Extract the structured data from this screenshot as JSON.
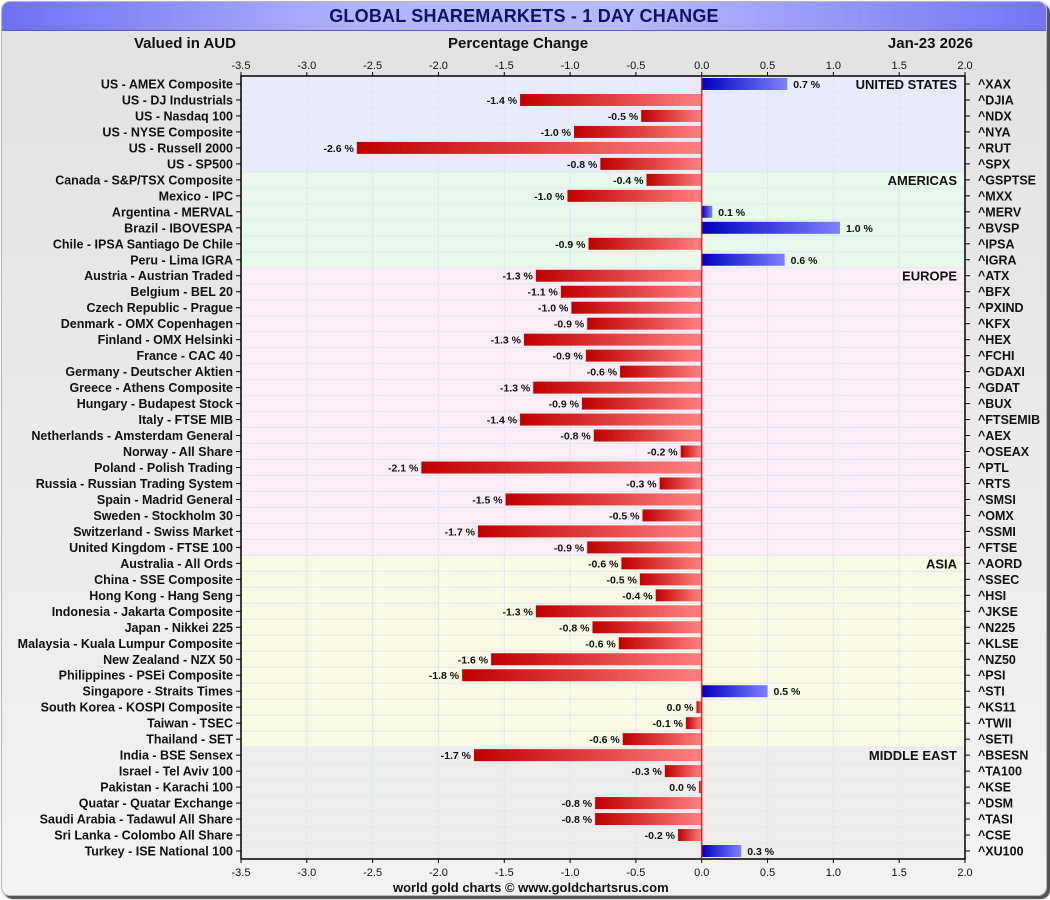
{
  "header": {
    "title": "GLOBAL SHAREMARKETS - 1 DAY CHANGE",
    "currency_note": "Valued in AUD",
    "axis_title": "Percentage Change",
    "date": "Jan-23  2026"
  },
  "footer": {
    "credit": "world gold charts © www.goldchartsrus.com"
  },
  "colors": {
    "negative_dark": "#c00000",
    "negative_light": "#ff8080",
    "positive_dark": "#0000c0",
    "positive_light": "#8080ff",
    "zero_line": "#ff0000"
  },
  "chart_data": {
    "type": "bar",
    "orientation": "horizontal",
    "title": "GLOBAL SHAREMARKETS - 1 DAY CHANGE",
    "xlabel": "Percentage Change",
    "xlim": [
      -3.5,
      2.0
    ],
    "x_ticks": [
      "-3.5",
      "-3.0",
      "-2.5",
      "-2.0",
      "-1.5",
      "-1.0",
      "-0.5",
      "0.0",
      "0.5",
      "1.0",
      "1.5",
      "2.0"
    ],
    "grid": true,
    "value_suffix": " %",
    "regions": [
      {
        "name": "UNITED STATES",
        "color": "#e8ecfa",
        "rows": [
          {
            "label": "US - AMEX Composite",
            "ticker": "^XAX",
            "value": 0.65,
            "display": "0.7"
          },
          {
            "label": "US - DJ Industrials",
            "ticker": "^DJIA",
            "value": -1.38,
            "display": "-1.4"
          },
          {
            "label": "US - Nasdaq 100",
            "ticker": "^NDX",
            "value": -0.46,
            "display": "-0.5"
          },
          {
            "label": "US - NYSE Composite",
            "ticker": "^NYA",
            "value": -0.97,
            "display": "-1.0"
          },
          {
            "label": "US - Russell 2000",
            "ticker": "^RUT",
            "value": -2.62,
            "display": "-2.6"
          },
          {
            "label": "US - SP500",
            "ticker": "^SPX",
            "value": -0.77,
            "display": "-0.8"
          }
        ]
      },
      {
        "name": "AMERICAS",
        "color": "#e8f8ea",
        "rows": [
          {
            "label": "Canada - S&P/TSX Composite",
            "ticker": "^GSPTSE",
            "value": -0.42,
            "display": "-0.4"
          },
          {
            "label": "Mexico - IPC",
            "ticker": "^MXX",
            "value": -1.02,
            "display": "-1.0"
          },
          {
            "label": "Argentina - MERVAL",
            "ticker": "^MERV",
            "value": 0.08,
            "display": "0.1"
          },
          {
            "label": "Brazil - IBOVESPA",
            "ticker": "^BVSP",
            "value": 1.05,
            "display": "1.0"
          },
          {
            "label": "Chile - IPSA Santiago De Chile",
            "ticker": "^IPSA",
            "value": -0.86,
            "display": "-0.9"
          },
          {
            "label": "Peru - Lima IGRA",
            "ticker": "^IGRA",
            "value": 0.63,
            "display": "0.6"
          }
        ]
      },
      {
        "name": "EUROPE",
        "color": "#fbeef7",
        "rows": [
          {
            "label": "Austria - Austrian Traded",
            "ticker": "^ATX",
            "value": -1.26,
            "display": "-1.3"
          },
          {
            "label": "Belgium - BEL 20",
            "ticker": "^BFX",
            "value": -1.07,
            "display": "-1.1"
          },
          {
            "label": "Czech Republic - Prague",
            "ticker": "^PXIND",
            "value": -0.99,
            "display": "-1.0"
          },
          {
            "label": "Denmark - OMX Copenhagen",
            "ticker": "^KFX",
            "value": -0.87,
            "display": "-0.9"
          },
          {
            "label": "Finland - OMX Helsinki",
            "ticker": "^HEX",
            "value": -1.35,
            "display": "-1.3"
          },
          {
            "label": "France - CAC 40",
            "ticker": "^FCHI",
            "value": -0.88,
            "display": "-0.9"
          },
          {
            "label": "Germany - Deutscher Aktien",
            "ticker": "^GDAXI",
            "value": -0.62,
            "display": "-0.6"
          },
          {
            "label": "Greece - Athens Composite",
            "ticker": "^GDAT",
            "value": -1.28,
            "display": "-1.3"
          },
          {
            "label": "Hungary - Budapest Stock",
            "ticker": "^BUX",
            "value": -0.91,
            "display": "-0.9"
          },
          {
            "label": "Italy - FTSE MIB",
            "ticker": "^FTSEMIB",
            "value": -1.38,
            "display": "-1.4"
          },
          {
            "label": "Netherlands - Amsterdam General",
            "ticker": "^AEX",
            "value": -0.82,
            "display": "-0.8"
          },
          {
            "label": "Norway - All Share",
            "ticker": "^OSEAX",
            "value": -0.16,
            "display": "-0.2"
          },
          {
            "label": "Poland - Polish Trading",
            "ticker": "^PTL",
            "value": -2.13,
            "display": "-2.1"
          },
          {
            "label": "Russia - Russian Trading System",
            "ticker": "^RTS",
            "value": -0.32,
            "display": "-0.3"
          },
          {
            "label": "Spain - Madrid General",
            "ticker": "^SMSI",
            "value": -1.49,
            "display": "-1.5"
          },
          {
            "label": "Sweden - Stockholm 30",
            "ticker": "^OMX",
            "value": -0.45,
            "display": "-0.5"
          },
          {
            "label": "Switzerland - Swiss Market",
            "ticker": "^SSMI",
            "value": -1.7,
            "display": "-1.7"
          },
          {
            "label": "United Kingdom - FTSE 100",
            "ticker": "^FTSE",
            "value": -0.87,
            "display": "-0.9"
          }
        ]
      },
      {
        "name": "ASIA",
        "color": "#f9f9e6",
        "rows": [
          {
            "label": "Australia - All Ords",
            "ticker": "^AORD",
            "value": -0.61,
            "display": "-0.6"
          },
          {
            "label": "China - SSE Composite",
            "ticker": "^SSEC",
            "value": -0.47,
            "display": "-0.5"
          },
          {
            "label": "Hong Kong - Hang Seng",
            "ticker": "^HSI",
            "value": -0.35,
            "display": "-0.4"
          },
          {
            "label": "Indonesia - Jakarta Composite",
            "ticker": "^JKSE",
            "value": -1.26,
            "display": "-1.3"
          },
          {
            "label": "Japan - Nikkei 225",
            "ticker": "^N225",
            "value": -0.83,
            "display": "-0.8"
          },
          {
            "label": "Malaysia - Kuala Lumpur Composite",
            "ticker": "^KLSE",
            "value": -0.63,
            "display": "-0.6"
          },
          {
            "label": "New Zealand - NZX 50",
            "ticker": "^NZ50",
            "value": -1.6,
            "display": "-1.6"
          },
          {
            "label": "Philippines - PSEi Composite",
            "ticker": "^PSI",
            "value": -1.82,
            "display": "-1.8"
          },
          {
            "label": "Singapore - Straits Times",
            "ticker": "^STI",
            "value": 0.5,
            "display": "0.5"
          },
          {
            "label": "South Korea - KOSPI Composite",
            "ticker": "^KS11",
            "value": -0.04,
            "display": "0.0"
          },
          {
            "label": "Taiwan - TSEC",
            "ticker": "^TWII",
            "value": -0.12,
            "display": "-0.1"
          },
          {
            "label": "Thailand - SET",
            "ticker": "^SETI",
            "value": -0.6,
            "display": "-0.6"
          }
        ]
      },
      {
        "name": "MIDDLE EAST",
        "color": "#ededec",
        "rows": [
          {
            "label": "India - BSE Sensex",
            "ticker": "^BSESN",
            "value": -1.73,
            "display": "-1.7"
          },
          {
            "label": "Israel - Tel Aviv 100",
            "ticker": "^TA100",
            "value": -0.28,
            "display": "-0.3"
          },
          {
            "label": "Pakistan - Karachi 100",
            "ticker": "^KSE",
            "value": -0.02,
            "display": "0.0"
          },
          {
            "label": "Quatar - Quatar Exchange",
            "ticker": "^DSM",
            "value": -0.81,
            "display": "-0.8"
          },
          {
            "label": "Saudi Arabia - Tadawul All Share",
            "ticker": "^TASI",
            "value": -0.81,
            "display": "-0.8"
          },
          {
            "label": "Sri Lanka - Colombo All Share",
            "ticker": "^CSE",
            "value": -0.18,
            "display": "-0.2"
          },
          {
            "label": "Turkey - ISE National 100",
            "ticker": "^XU100",
            "value": 0.3,
            "display": "0.3"
          }
        ]
      }
    ]
  }
}
